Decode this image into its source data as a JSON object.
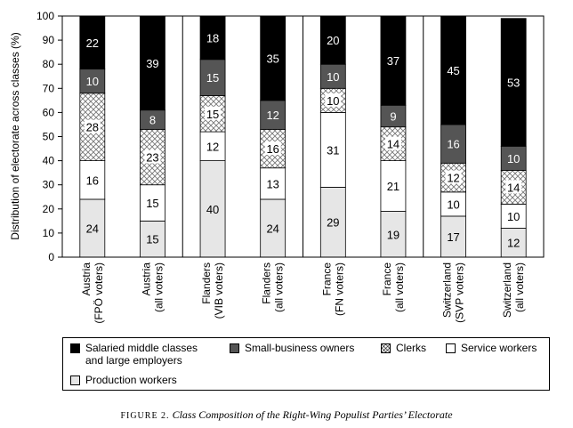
{
  "chart_data": {
    "type": "bar",
    "stacked": true,
    "ylabel": "Distribution of electorate across classes (%)",
    "ylim": [
      0,
      100
    ],
    "yticks": [
      0,
      10,
      20,
      30,
      40,
      50,
      60,
      70,
      80,
      90,
      100
    ],
    "categories": [
      [
        "Austria",
        "(FPÖ voters)"
      ],
      [
        "Austria",
        "(all voters)"
      ],
      [
        "Flanders",
        "(VIB voters)"
      ],
      [
        "Flanders",
        "(all voters)"
      ],
      [
        "France",
        "(FN voters)"
      ],
      [
        "France",
        "(all voters)"
      ],
      [
        "Switzerland",
        "(SVP voters)"
      ],
      [
        "Switzerland",
        "(all voters)"
      ]
    ],
    "series": [
      {
        "name": "Production workers",
        "color": "#e6e6e6",
        "pattern": "none",
        "values": [
          24,
          15,
          40,
          24,
          29,
          19,
          17,
          12
        ]
      },
      {
        "name": "Service workers",
        "color": "#ffffff",
        "pattern": "none",
        "values": [
          16,
          15,
          12,
          13,
          31,
          21,
          10,
          10
        ]
      },
      {
        "name": "Clerks",
        "color": "#ffffff",
        "pattern": "crosshatch",
        "values": [
          28,
          23,
          15,
          16,
          10,
          14,
          12,
          14
        ]
      },
      {
        "name": "Small-business owners",
        "color": "#555555",
        "pattern": "none",
        "values": [
          10,
          8,
          15,
          12,
          10,
          9,
          16,
          10
        ]
      },
      {
        "name": "Salaried middle classes and large employers",
        "color": "#000000",
        "pattern": "none",
        "values": [
          22,
          39,
          18,
          35,
          20,
          37,
          45,
          53
        ]
      }
    ],
    "legend": {
      "position": "bottom",
      "entries": [
        {
          "lines": [
            "Salaried middle classes",
            "and large employers"
          ],
          "color": "#000000",
          "pattern": "none"
        },
        {
          "lines": [
            "Small-business owners"
          ],
          "color": "#555555",
          "pattern": "none"
        },
        {
          "lines": [
            "Clerks"
          ],
          "color": "#ffffff",
          "pattern": "crosshatch"
        },
        {
          "lines": [
            "Service workers"
          ],
          "color": "#ffffff",
          "pattern": "none"
        },
        {
          "lines": [
            "Production workers"
          ],
          "color": "#e6e6e6",
          "pattern": "none"
        }
      ]
    },
    "grid": false
  },
  "caption": {
    "figure": "FIGURE 2.",
    "text": "Class Composition of the Right-Wing Populist Parties’ Electorate"
  }
}
